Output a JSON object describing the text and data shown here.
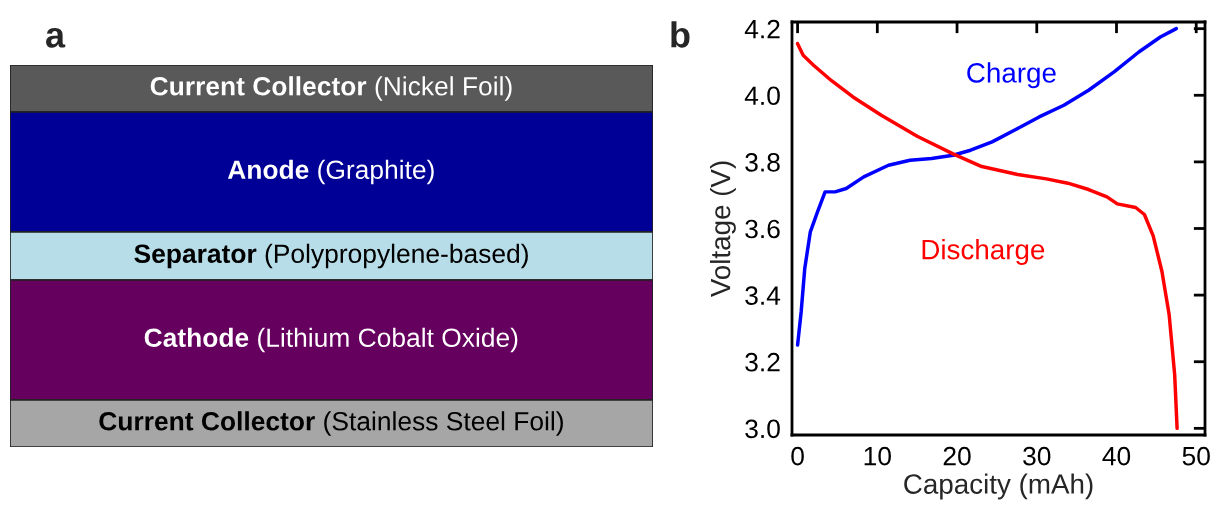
{
  "chart_data": [
    {
      "type": "other",
      "title": "a",
      "annotations": [
        "Current Collector (Nickel Foil)",
        "Anode (Graphite)",
        "Separator (Polypropylene-based)",
        "Cathode (Lithium Cobalt Oxide)",
        "Current Collector (Stainless Steel Foil)"
      ]
    },
    {
      "type": "line",
      "title": "b",
      "xlabel": "Capacity (mAh)",
      "ylabel": "Voltage (V)",
      "xlim": [
        -0.7,
        51.1
      ],
      "ylim": [
        2.98,
        4.22
      ],
      "xticks": [
        0,
        10,
        20,
        30,
        40,
        50
      ],
      "yticks": [
        {
          "value": 3.0,
          "label": "3.0"
        },
        {
          "value": 3.2,
          "label": "3.2"
        },
        {
          "value": 3.4,
          "label": "3.4"
        },
        {
          "value": 3.6,
          "label": "3.6"
        },
        {
          "value": 3.8,
          "label": "3.8"
        },
        {
          "value": 4.0,
          "label": "4.0"
        },
        {
          "value": 4.2,
          "label": "4.2"
        }
      ],
      "grid": false,
      "legend": false,
      "series": [
        {
          "name": "Charge",
          "color": "#0000ff",
          "x": [
            0,
            0.45,
            0.9,
            1.6,
            2.5,
            3.45,
            4.7,
            6.1,
            8.3,
            11.4,
            14.1,
            16.8,
            19.5,
            21.7,
            24.4,
            27.6,
            30.3,
            33.4,
            36.5,
            39.7,
            42.8,
            45.5,
            47.5
          ],
          "values": [
            3.25,
            3.35,
            3.48,
            3.59,
            3.65,
            3.71,
            3.71,
            3.72,
            3.755,
            3.79,
            3.805,
            3.81,
            3.82,
            3.835,
            3.86,
            3.9,
            3.935,
            3.97,
            4.015,
            4.07,
            4.13,
            4.175,
            4.2
          ]
        },
        {
          "name": "Discharge",
          "color": "#ff0000",
          "x": [
            0,
            0.7,
            2.0,
            4.3,
            6.95,
            10.5,
            15.0,
            19.5,
            23.1,
            27.6,
            31.2,
            33.9,
            36.5,
            38.8,
            40.1,
            42.4,
            43.5,
            44.6,
            45.7,
            46.6,
            47.3,
            47.6
          ],
          "values": [
            4.155,
            4.12,
            4.09,
            4.043,
            3.995,
            3.94,
            3.877,
            3.824,
            3.786,
            3.762,
            3.749,
            3.736,
            3.717,
            3.695,
            3.674,
            3.663,
            3.642,
            3.578,
            3.471,
            3.342,
            3.16,
            3.0
          ]
        }
      ]
    }
  ]
}
